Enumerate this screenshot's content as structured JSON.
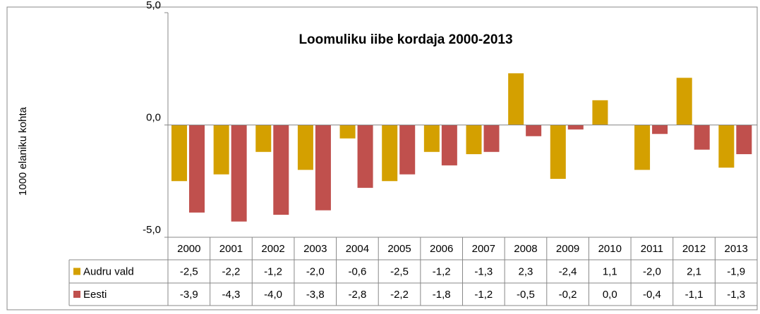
{
  "chart_data": {
    "type": "bar",
    "title": "Loomuliku iibe kordaja 2000-2013",
    "y_label": "1000 elaniku kohta",
    "categories": [
      "2000",
      "2001",
      "2002",
      "2003",
      "2004",
      "2005",
      "2006",
      "2007",
      "2008",
      "2009",
      "2010",
      "2011",
      "2012",
      "2013"
    ],
    "series": [
      {
        "name": "Audru vald",
        "color": "#d4a000",
        "values": [
          -2.5,
          -2.2,
          -1.2,
          -2.0,
          -0.6,
          -2.5,
          -1.2,
          -1.3,
          2.3,
          -2.4,
          1.1,
          -2.0,
          2.1,
          -1.9
        ],
        "value_labels": [
          "-2,5",
          "-2,2",
          "-1,2",
          "-2,0",
          "-0,6",
          "-2,5",
          "-1,2",
          "-1,3",
          "2,3",
          "-2,4",
          "1,1",
          "-2,0",
          "2,1",
          "-1,9"
        ]
      },
      {
        "name": "Eesti",
        "color": "#c0504d",
        "values": [
          -3.9,
          -4.3,
          -4.0,
          -3.8,
          -2.8,
          -2.2,
          -1.8,
          -1.2,
          -0.5,
          -0.2,
          0.0,
          -0.4,
          -1.1,
          -1.3
        ],
        "value_labels": [
          "-3,9",
          "-4,3",
          "-4,0",
          "-3,8",
          "-2,8",
          "-2,2",
          "-1,8",
          "-1,2",
          "-0,5",
          "-0,2",
          "0,0",
          "-0,4",
          "-1,1",
          "-1,3"
        ]
      }
    ],
    "ylim": [
      -5,
      5
    ],
    "yticks": [
      {
        "value": -5,
        "label": "-5,0"
      },
      {
        "value": 0,
        "label": "0,0"
      },
      {
        "value": 5,
        "label": "5,0"
      }
    ]
  }
}
